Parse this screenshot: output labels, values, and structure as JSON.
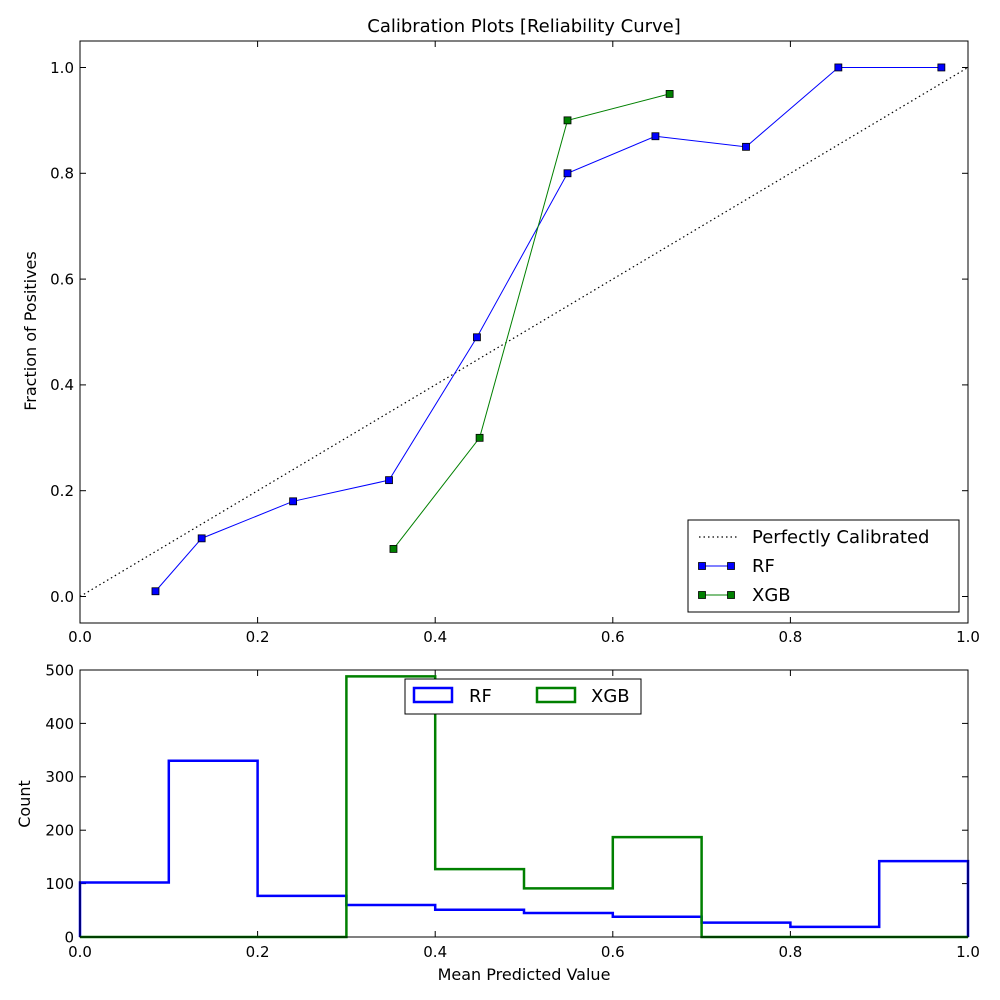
{
  "chart_data": [
    {
      "type": "line",
      "title": "Calibration Plots  [Reliability Curve]",
      "xlabel": "",
      "ylabel": "Fraction of Positives",
      "xlim": [
        0.0,
        1.0
      ],
      "ylim": [
        -0.05,
        1.05
      ],
      "xticks": [
        "0.0",
        "0.2",
        "0.4",
        "0.6",
        "0.8",
        "1.0"
      ],
      "yticks": [
        "0.0",
        "0.2",
        "0.4",
        "0.6",
        "0.8",
        "1.0"
      ],
      "grid": false,
      "legend_position": "lower-right",
      "series": [
        {
          "name": "Perfectly Calibrated",
          "color": "#000000",
          "style": "dotted",
          "marker": "none",
          "x": [
            0.0,
            1.0
          ],
          "y": [
            0.0,
            1.0
          ]
        },
        {
          "name": "RF",
          "color": "#0000ff",
          "style": "solid",
          "marker": "square",
          "x": [
            0.085,
            0.137,
            0.24,
            0.348,
            0.447,
            0.549,
            0.648,
            0.75,
            0.854,
            0.97
          ],
          "y": [
            0.01,
            0.11,
            0.18,
            0.22,
            0.49,
            0.8,
            0.87,
            0.85,
            1.0,
            1.0
          ]
        },
        {
          "name": "XGB",
          "color": "#008000",
          "style": "solid",
          "marker": "square",
          "x": [
            0.353,
            0.45,
            0.549,
            0.664
          ],
          "y": [
            0.09,
            0.3,
            0.9,
            0.95
          ]
        }
      ]
    },
    {
      "type": "histogram",
      "title": "",
      "xlabel": "Mean Predicted Value",
      "ylabel": "Count",
      "xlim": [
        0.0,
        1.0
      ],
      "ylim": [
        0,
        500
      ],
      "xticks": [
        "0.0",
        "0.2",
        "0.4",
        "0.6",
        "0.8",
        "1.0"
      ],
      "yticks": [
        "0",
        "100",
        "200",
        "300",
        "400",
        "500"
      ],
      "grid": false,
      "legend_position": "upper-center",
      "bin_edges": [
        0.0,
        0.1,
        0.2,
        0.3,
        0.4,
        0.5,
        0.6,
        0.7,
        0.8,
        0.9,
        1.0
      ],
      "series": [
        {
          "name": "RF",
          "color": "#0000ff",
          "values": [
            102,
            330,
            77,
            60,
            51,
            45,
            38,
            27,
            19,
            142
          ]
        },
        {
          "name": "XGB",
          "color": "#008000",
          "values": [
            0,
            0,
            0,
            488,
            127,
            91,
            187,
            0,
            0,
            0
          ]
        }
      ]
    }
  ]
}
